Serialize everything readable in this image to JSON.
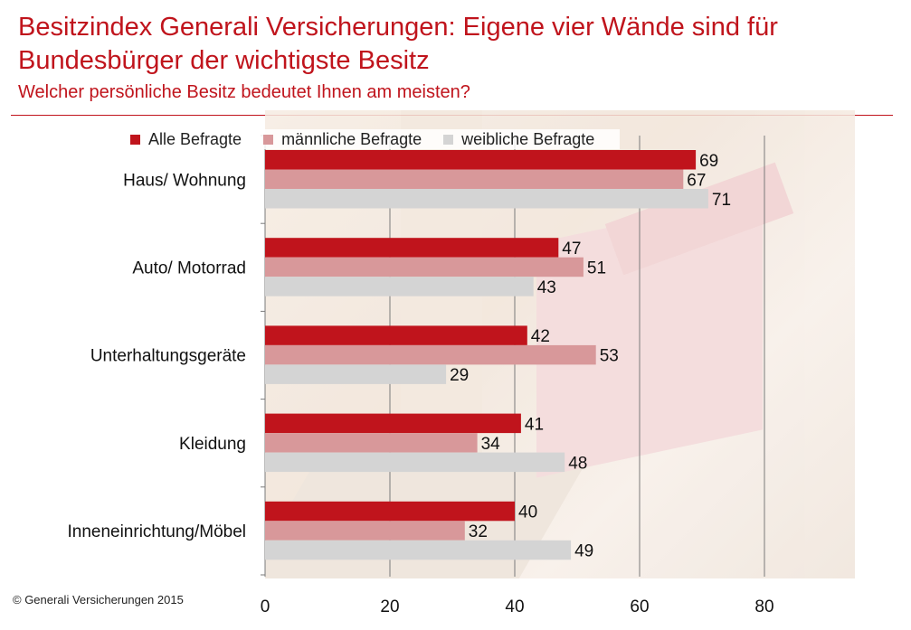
{
  "header": {
    "title": "Besitzindex Generali Versicherungen: Eigene vier Wände sind für Bundesbürger der wichtigste Besitz",
    "subtitle": "Welcher persönliche Besitz bedeutet Ihnen am meisten?"
  },
  "footer": {
    "copyright": "© Generali Versicherungen 2015"
  },
  "colors": {
    "accent": "#c0141c",
    "alle": "#c0141c",
    "maennlich": "#d8989a",
    "weiblich": "#d4d4d4"
  },
  "chart_data": {
    "type": "bar",
    "orientation": "horizontal",
    "categories": [
      "Haus/ Wohnung",
      "Auto/ Motorrad",
      "Unterhaltungsgeräte",
      "Kleidung",
      "Inneneinrichtung/Möbel"
    ],
    "series": [
      {
        "name": "Alle Befragte",
        "color": "#c0141c",
        "values": [
          69,
          47,
          42,
          41,
          40
        ]
      },
      {
        "name": "männliche Befragte",
        "color": "#d8989a",
        "values": [
          67,
          51,
          53,
          34,
          32
        ]
      },
      {
        "name": "weibliche Befragte",
        "color": "#d4d4d4",
        "values": [
          71,
          43,
          29,
          48,
          49
        ]
      }
    ],
    "xlim": [
      0,
      80
    ],
    "xticks": [
      "0",
      "20",
      "40",
      "60",
      "80"
    ],
    "grid": true,
    "legend_position": "top"
  }
}
